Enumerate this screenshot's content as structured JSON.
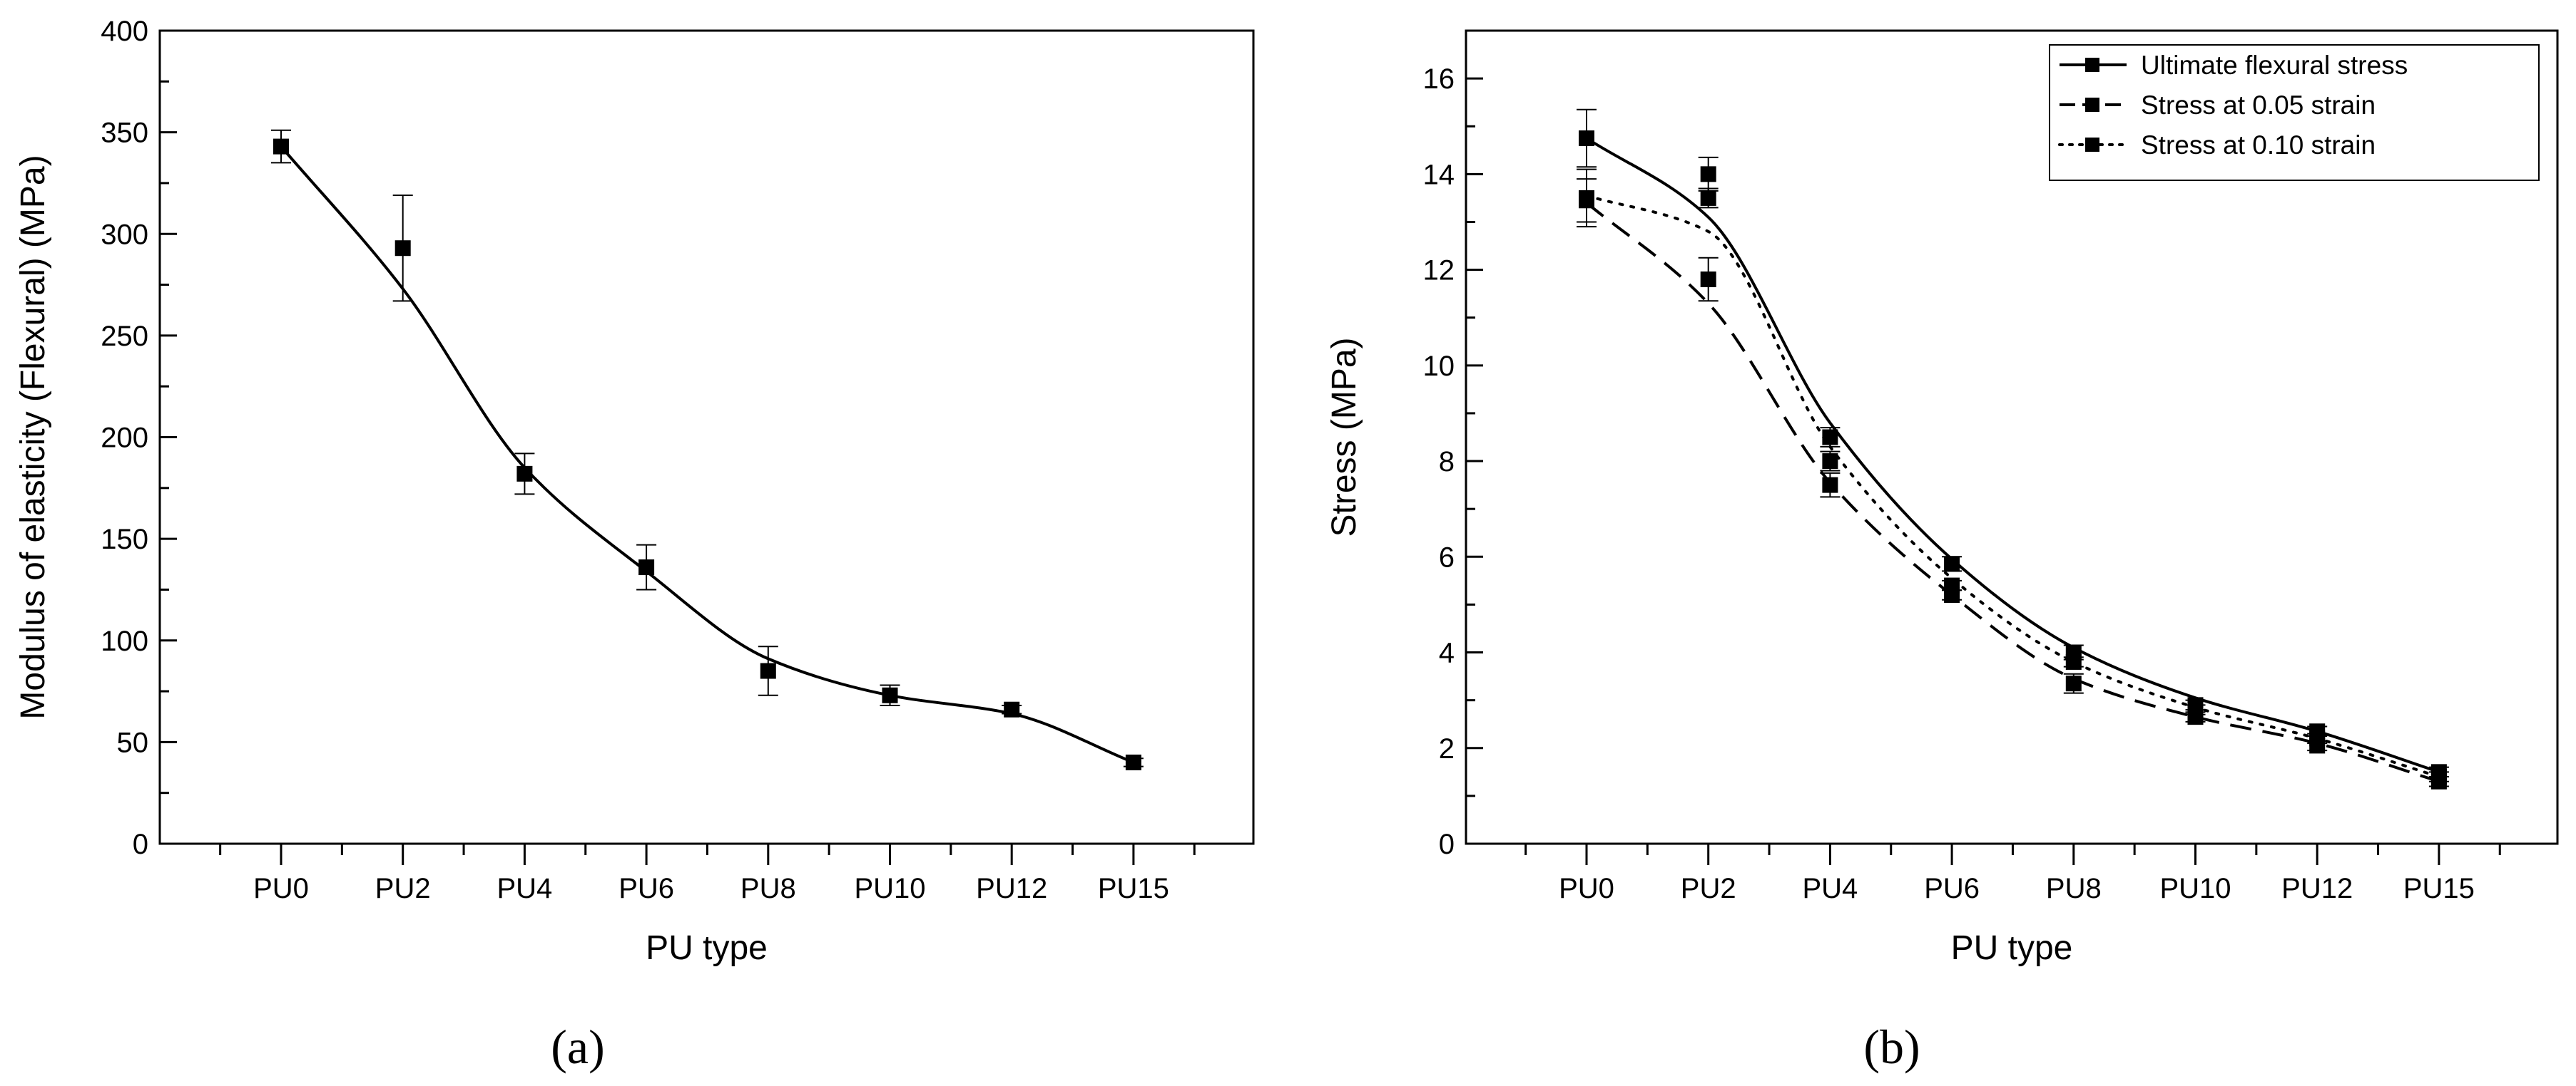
{
  "chart_data": [
    {
      "type": "line",
      "panel_label": "(a)",
      "title": "",
      "xlabel": "PU type",
      "ylabel": "Modulus of elasticity (Flexural) (MPa)",
      "categories": [
        "PU0",
        "PU2",
        "PU4",
        "PU6",
        "PU8",
        "PU10",
        "PU12",
        "PU15"
      ],
      "ylim": [
        0,
        400
      ],
      "yticks": [
        0,
        50,
        100,
        150,
        200,
        250,
        300,
        350,
        400
      ],
      "series": [
        {
          "name": "Modulus of elasticity",
          "style": "solid",
          "values": [
            343,
            293,
            182,
            136,
            85,
            73,
            66,
            40
          ],
          "error_low": [
            8,
            26,
            10,
            11,
            12,
            5,
            2,
            2
          ],
          "error_high": [
            8,
            26,
            10,
            11,
            12,
            5,
            2,
            2
          ],
          "fit": [
            343,
            273,
            185,
            134,
            91,
            73,
            64,
            40
          ]
        }
      ],
      "legend": null
    },
    {
      "type": "line",
      "panel_label": "(b)",
      "title": "",
      "xlabel": "PU type",
      "ylabel": "Stress (MPa)",
      "categories": [
        "PU0",
        "PU2",
        "PU4",
        "PU6",
        "PU8",
        "PU10",
        "PU12",
        "PU15"
      ],
      "ylim": [
        0,
        17
      ],
      "yticks": [
        0,
        2,
        4,
        6,
        8,
        10,
        12,
        14,
        16
      ],
      "legend_position": "top-right",
      "series": [
        {
          "name": "Ultimate flexural stress",
          "style": "solid",
          "values": [
            14.75,
            14.0,
            8.5,
            5.85,
            4.0,
            2.9,
            2.35,
            1.5
          ],
          "error_low": [
            0.6,
            0.35,
            0.2,
            0.15,
            0.15,
            0.1,
            0.1,
            0.1
          ],
          "error_high": [
            0.6,
            0.35,
            0.2,
            0.15,
            0.15,
            0.1,
            0.1,
            0.1
          ],
          "fit": [
            14.75,
            13.1,
            8.8,
            5.95,
            4.1,
            3.05,
            2.35,
            1.5
          ]
        },
        {
          "name": "Stress at 0.05 strain",
          "style": "dashed",
          "values": [
            13.45,
            11.8,
            7.5,
            5.2,
            3.35,
            2.65,
            2.05,
            1.3
          ],
          "error_low": [
            0.45,
            0.45,
            0.25,
            0.1,
            0.2,
            0.1,
            0.1,
            0.1
          ],
          "error_high": [
            0.45,
            0.45,
            0.25,
            0.1,
            0.2,
            0.1,
            0.1,
            0.1
          ],
          "fit": [
            13.4,
            11.3,
            7.55,
            5.2,
            3.45,
            2.65,
            2.1,
            1.3
          ]
        },
        {
          "name": "Stress at 0.10 strain",
          "style": "dotted",
          "values": [
            13.5,
            13.5,
            8.0,
            5.4,
            3.8,
            2.8,
            2.2,
            1.4
          ],
          "error_low": [
            0.6,
            0.2,
            0.2,
            0.1,
            0.1,
            0.1,
            0.1,
            0.1
          ],
          "error_high": [
            0.6,
            0.2,
            0.2,
            0.1,
            0.1,
            0.1,
            0.1,
            0.1
          ],
          "fit": [
            13.55,
            12.8,
            8.3,
            5.55,
            3.8,
            2.85,
            2.2,
            1.4
          ]
        }
      ]
    }
  ]
}
